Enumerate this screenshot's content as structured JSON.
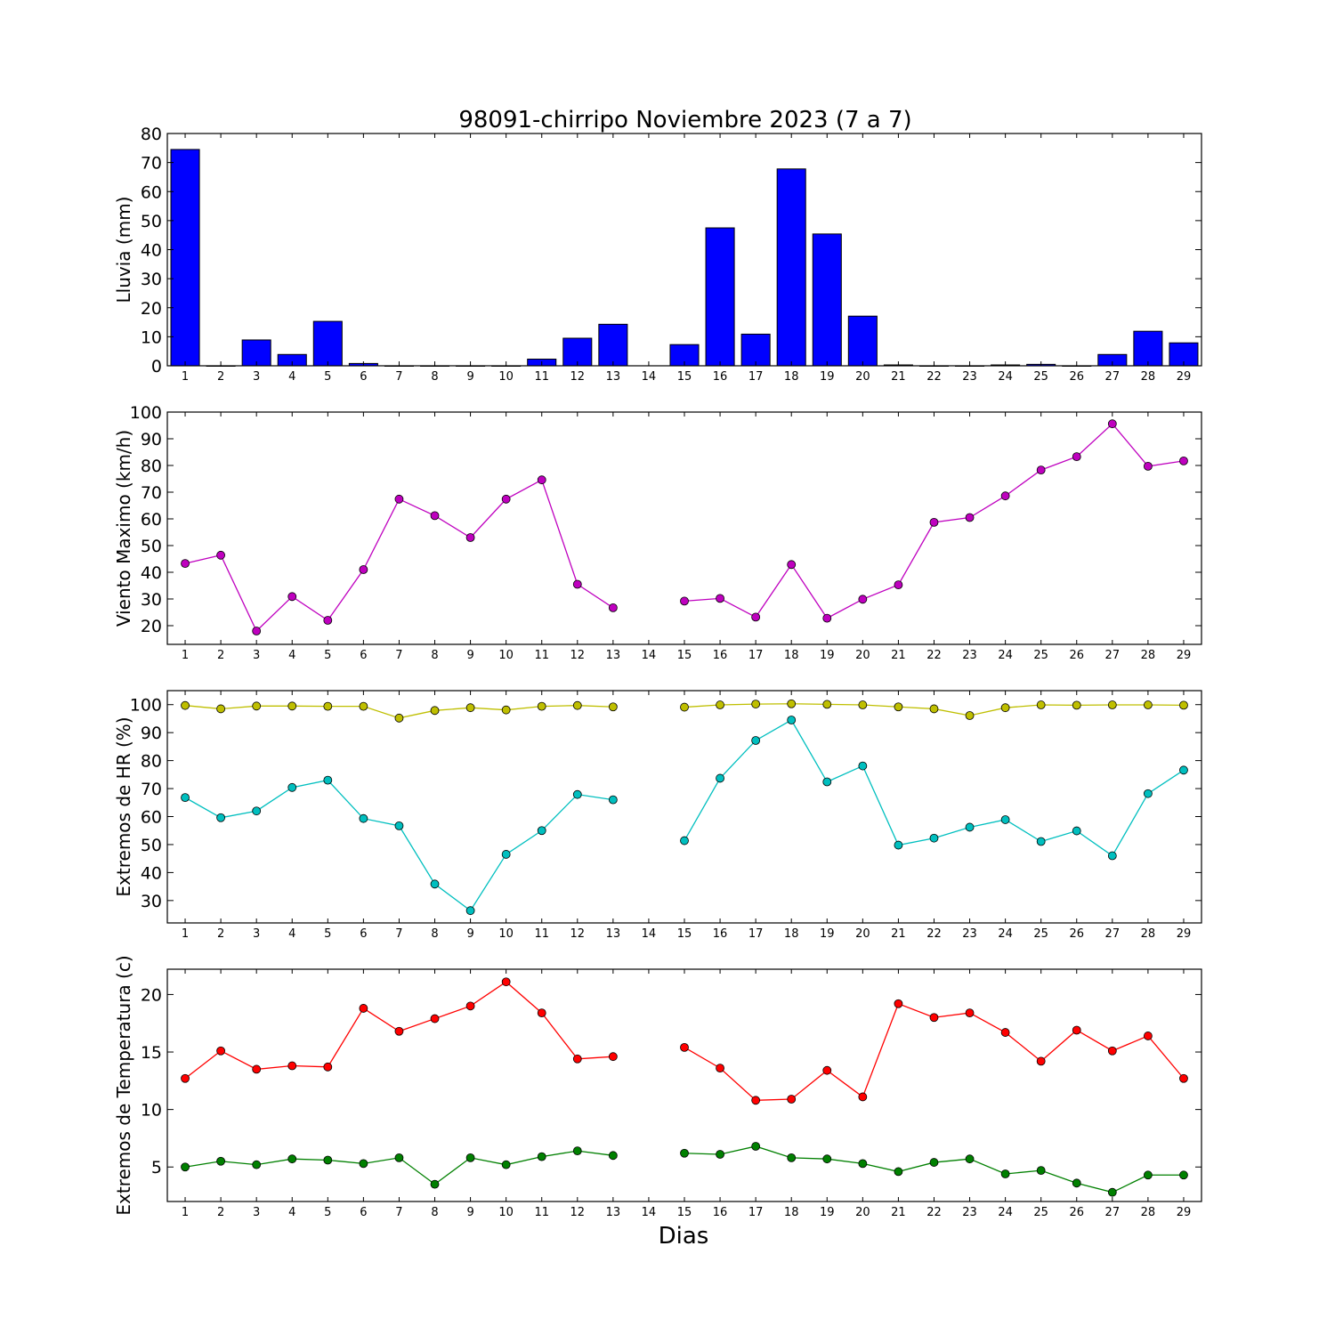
{
  "title": "98091-chirripo Noviembre 2023  (7 a 7)",
  "xlabel": "Dias",
  "colors": {
    "bar": "#0000ff",
    "wind": "#bf00bf",
    "hr_max": "#bfbf00",
    "hr_min": "#00bfbf",
    "t_max": "#ff0000",
    "t_min": "#008000"
  },
  "chart_data": [
    {
      "type": "bar",
      "ylabel": "Lluvia (mm)",
      "ylim": [
        0,
        80
      ],
      "yticks": [
        0,
        10,
        20,
        30,
        40,
        50,
        60,
        70,
        80
      ],
      "x": [
        1,
        2,
        3,
        4,
        5,
        6,
        7,
        8,
        9,
        10,
        11,
        12,
        13,
        14,
        15,
        16,
        17,
        18,
        19,
        20,
        21,
        22,
        23,
        24,
        25,
        26,
        27,
        28,
        29
      ],
      "values": [
        74.5,
        0,
        8.9,
        3.9,
        15.3,
        0.8,
        0,
        0,
        0,
        0,
        2.3,
        9.5,
        14.3,
        null,
        7.3,
        47.5,
        10.9,
        67.8,
        45.4,
        17.1,
        0.3,
        0,
        0,
        0.3,
        0.5,
        0,
        3.9,
        11.9,
        7.9
      ]
    },
    {
      "type": "line",
      "ylabel": "Viento Maximo (km/h)",
      "ylim": [
        13,
        100
      ],
      "yticks": [
        20,
        30,
        40,
        50,
        60,
        70,
        80,
        90,
        100
      ],
      "x": [
        1,
        2,
        3,
        4,
        5,
        6,
        7,
        8,
        9,
        10,
        11,
        12,
        13,
        14,
        15,
        16,
        17,
        18,
        19,
        20,
        21,
        22,
        23,
        24,
        25,
        26,
        27,
        28,
        29
      ],
      "series": [
        {
          "values": [
            43.3,
            46.4,
            18.0,
            30.9,
            22.0,
            41.0,
            67.4,
            61.2,
            53.0,
            67.4,
            74.6,
            35.5,
            26.7,
            null,
            29.2,
            30.2,
            23.2,
            42.9,
            22.8,
            29.9,
            35.3,
            58.7,
            60.5,
            68.6,
            78.3,
            83.3,
            95.6,
            79.7,
            81.7
          ]
        }
      ]
    },
    {
      "type": "line",
      "ylabel": "Extremos de HR (%)",
      "ylim": [
        22,
        105
      ],
      "yticks": [
        30,
        40,
        50,
        60,
        70,
        80,
        90,
        100
      ],
      "x": [
        1,
        2,
        3,
        4,
        5,
        6,
        7,
        8,
        9,
        10,
        11,
        12,
        13,
        14,
        15,
        16,
        17,
        18,
        19,
        20,
        21,
        22,
        23,
        24,
        25,
        26,
        27,
        28,
        29
      ],
      "series": [
        {
          "values": [
            99.7,
            98.5,
            99.5,
            99.5,
            99.4,
            99.4,
            95.2,
            97.9,
            98.9,
            98.1,
            99.4,
            99.7,
            99.2,
            null,
            99.1,
            99.9,
            100.2,
            100.3,
            100.1,
            99.9,
            99.2,
            98.5,
            96.1,
            98.9,
            99.9,
            99.8,
            99.9,
            99.9,
            99.8
          ]
        },
        {
          "values": [
            66.8,
            59.6,
            62.0,
            70.4,
            73.0,
            59.3,
            56.7,
            35.9,
            26.4,
            46.5,
            55.0,
            67.9,
            66.0,
            null,
            51.4,
            73.7,
            87.2,
            94.5,
            72.4,
            78.1,
            49.8,
            52.3,
            56.2,
            58.9,
            51.1,
            54.9,
            46.0,
            68.2,
            76.6
          ]
        }
      ]
    },
    {
      "type": "line",
      "ylabel": "Extremos de Temperatura (c)",
      "ylim": [
        2,
        22.2
      ],
      "yticks": [
        5,
        10,
        15,
        20
      ],
      "x": [
        1,
        2,
        3,
        4,
        5,
        6,
        7,
        8,
        9,
        10,
        11,
        12,
        13,
        14,
        15,
        16,
        17,
        18,
        19,
        20,
        21,
        22,
        23,
        24,
        25,
        26,
        27,
        28,
        29
      ],
      "series": [
        {
          "values": [
            12.7,
            15.1,
            13.5,
            13.8,
            13.7,
            18.8,
            16.8,
            17.9,
            19.0,
            21.1,
            18.4,
            14.4,
            14.6,
            null,
            15.4,
            13.6,
            10.8,
            10.9,
            13.4,
            11.1,
            19.2,
            18.0,
            18.4,
            16.7,
            14.2,
            16.9,
            15.1,
            16.4,
            12.7
          ]
        },
        {
          "values": [
            5.0,
            5.5,
            5.2,
            5.7,
            5.6,
            5.3,
            5.8,
            3.5,
            5.8,
            5.2,
            5.9,
            6.4,
            6.0,
            null,
            6.2,
            6.1,
            6.8,
            5.8,
            5.7,
            5.3,
            4.6,
            5.4,
            5.7,
            4.4,
            4.7,
            3.6,
            2.8,
            4.3,
            4.3
          ]
        }
      ]
    }
  ]
}
